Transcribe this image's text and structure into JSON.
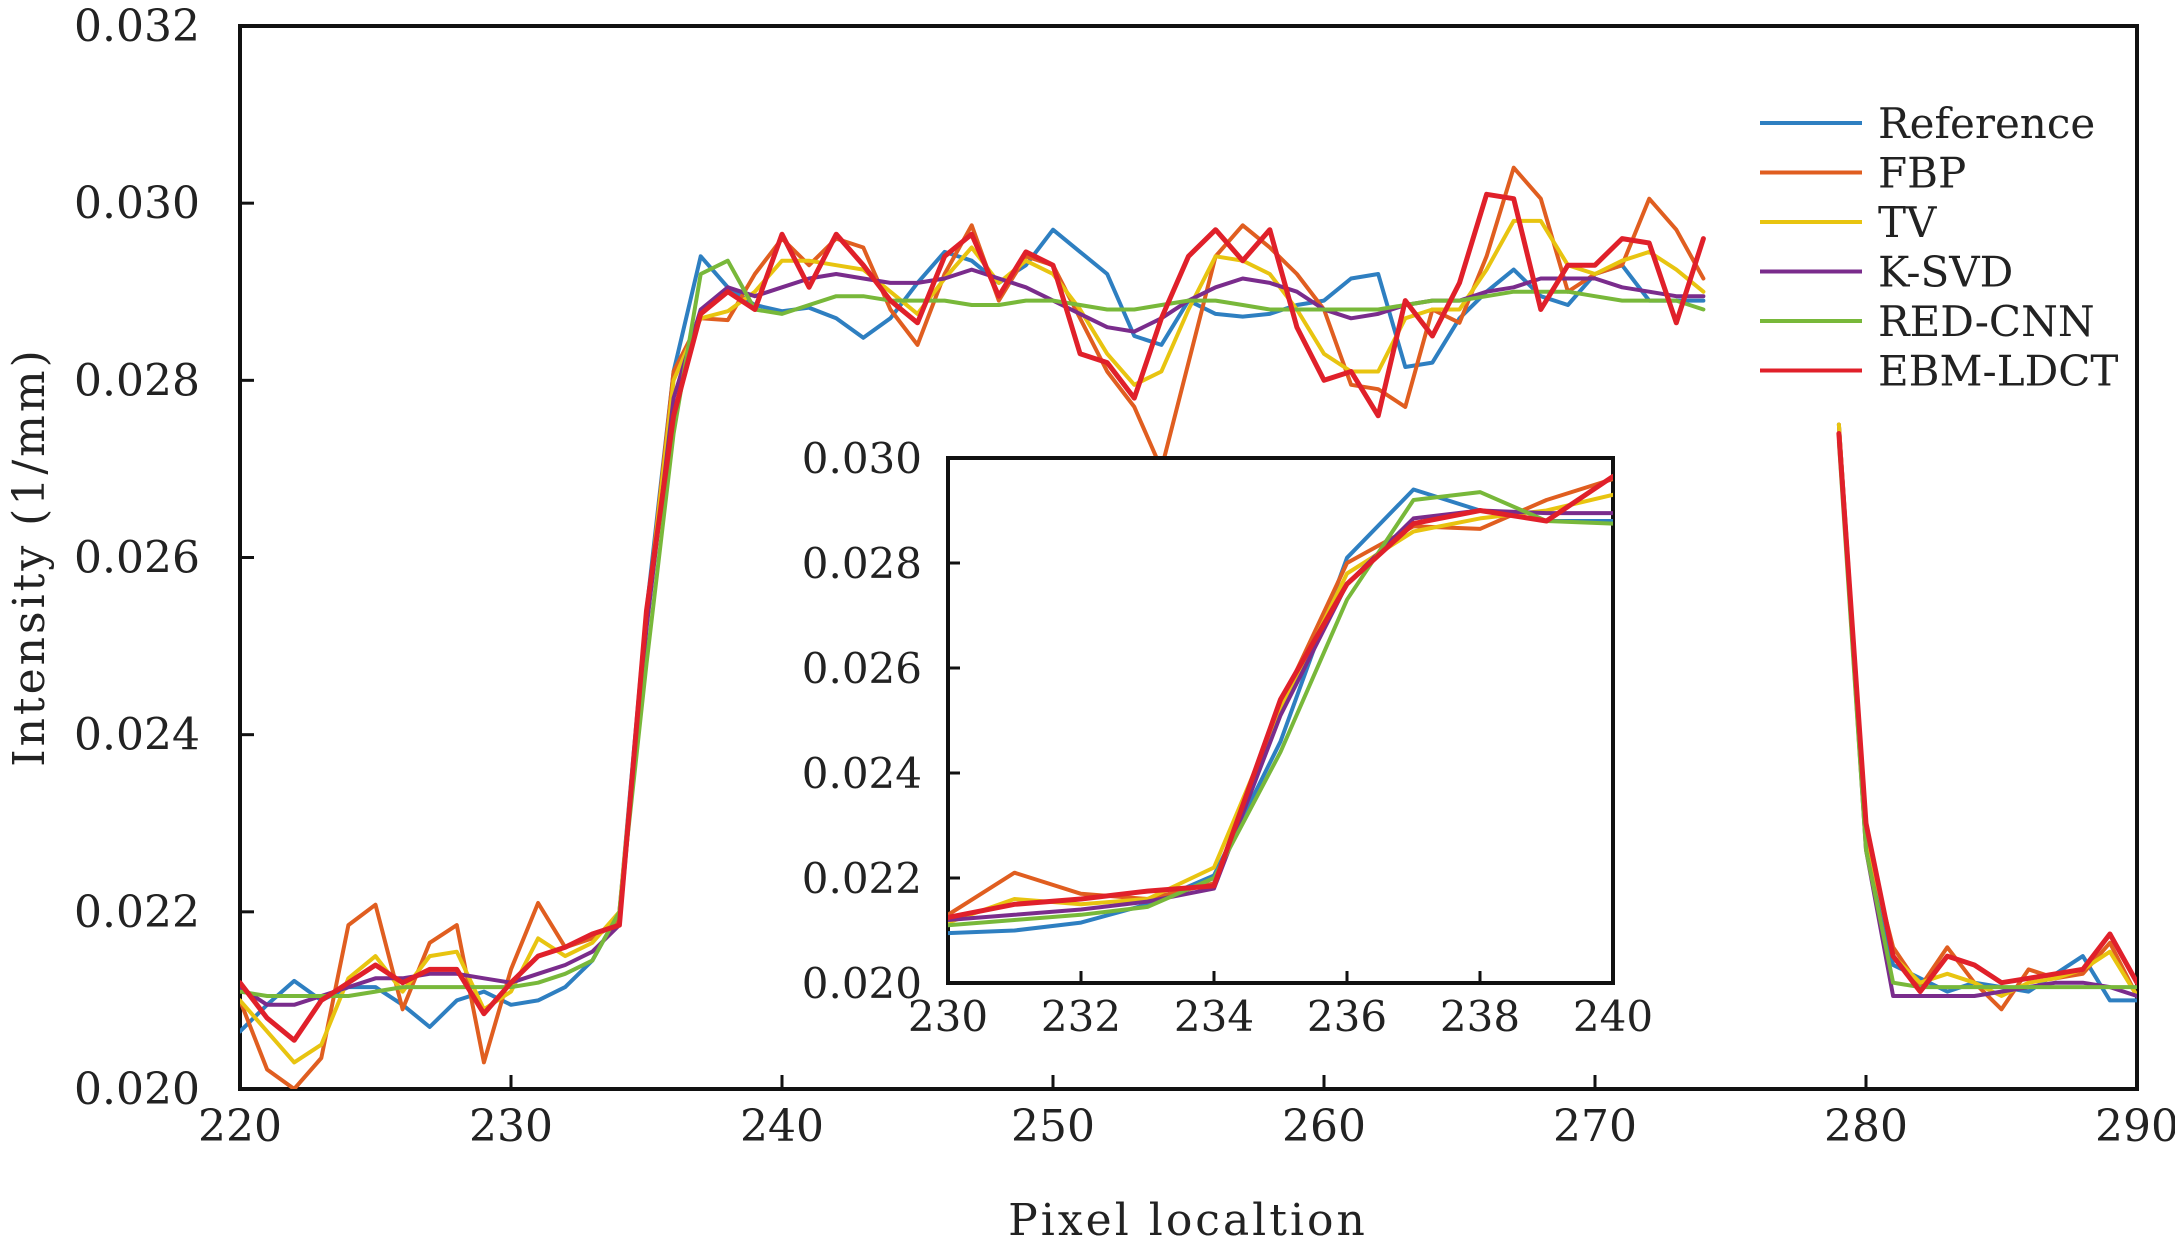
{
  "chart_data": [
    {
      "type": "line",
      "xlabel": "Pixel localtion",
      "ylabel": "Intensity (1/mm)",
      "xlim": [
        220,
        290
      ],
      "ylim": [
        0.02,
        0.032
      ],
      "xticks": [
        "220",
        "230",
        "240",
        "250",
        "260",
        "270",
        "280",
        "290"
      ],
      "yticks": [
        "0.020",
        "0.022",
        "0.024",
        "0.026",
        "0.028",
        "0.030",
        "0.032"
      ],
      "legend": "top-right",
      "x": [
        220,
        221,
        222,
        223,
        224,
        225,
        226,
        227,
        228,
        229,
        230,
        231,
        232,
        233,
        234,
        235,
        236,
        237,
        238,
        239,
        240,
        241,
        242,
        243,
        244,
        245,
        246,
        247,
        248,
        249,
        250,
        251,
        252,
        253,
        254,
        255,
        256,
        257,
        258,
        259,
        260,
        261,
        262,
        263,
        264,
        265,
        266,
        267,
        268,
        269,
        270,
        271,
        272,
        273,
        274,
        275,
        276,
        277,
        278,
        279,
        280,
        281,
        282,
        283,
        284,
        285,
        286,
        287,
        288,
        289,
        290
      ],
      "series": [
        {
          "name": "Reference",
          "color": "#2e7fc1",
          "values": [
            0.02065,
            0.02095,
            0.02122,
            0.021,
            0.02115,
            0.02115,
            0.02095,
            0.0207,
            0.021,
            0.0211,
            0.02095,
            0.021,
            0.02115,
            0.02145,
            0.022,
            0.0254,
            0.0281,
            0.0294,
            0.02905,
            0.02885,
            0.02878,
            0.02882,
            0.0287,
            0.02848,
            0.0287,
            0.0291,
            0.02945,
            0.02935,
            0.0291,
            0.0293,
            0.0297,
            0.02945,
            0.0292,
            0.0285,
            0.0284,
            0.0289,
            0.02875,
            0.02872,
            0.02875,
            0.02885,
            0.0289,
            0.02915,
            0.0292,
            0.02815,
            0.0282,
            0.0287,
            0.029,
            0.02925,
            0.02895,
            0.02885,
            0.0292,
            0.0293,
            0.0289,
            0.0289,
            0.0289,
            null,
            null,
            null,
            null,
            0.0275,
            0.0229,
            0.0214,
            0.02125,
            0.0211,
            0.0212,
            0.02115,
            0.0211,
            0.0213,
            0.0215,
            0.021,
            0.021
          ]
        },
        {
          "name": "FBP",
          "color": "#e05e20",
          "values": [
            0.021,
            0.02022,
            0.02,
            0.02035,
            0.02185,
            0.02208,
            0.0209,
            0.02165,
            0.02185,
            0.0203,
            0.02135,
            0.0221,
            0.0216,
            0.0217,
            0.0219,
            0.0253,
            0.0281,
            0.0287,
            0.02868,
            0.0292,
            0.0296,
            0.0293,
            0.0296,
            0.0295,
            0.0288,
            0.0284,
            0.0292,
            0.02975,
            0.0289,
            0.0294,
            0.0293,
            0.0287,
            0.0281,
            0.0277,
            0.027,
            0.0282,
            0.0294,
            0.02975,
            0.0295,
            0.0292,
            0.0288,
            0.02795,
            0.0279,
            0.0277,
            0.0288,
            0.02865,
            0.0294,
            0.0304,
            0.03005,
            0.029,
            0.0292,
            0.0293,
            0.03005,
            0.0297,
            0.02915,
            null,
            null,
            null,
            null,
            0.0275,
            0.0228,
            0.0216,
            0.02115,
            0.0216,
            0.0212,
            0.0209,
            0.02135,
            0.02125,
            0.0213,
            0.02165,
            0.02105
          ]
        },
        {
          "name": "TV",
          "color": "#e8c410",
          "values": [
            0.021,
            0.02065,
            0.0203,
            0.0205,
            0.02125,
            0.0215,
            0.0211,
            0.0215,
            0.02155,
            0.0209,
            0.0211,
            0.0217,
            0.0215,
            0.02165,
            0.022,
            0.0253,
            0.028,
            0.0287,
            0.02878,
            0.029,
            0.02935,
            0.02935,
            0.0293,
            0.02925,
            0.029,
            0.02875,
            0.02915,
            0.0295,
            0.0291,
            0.02935,
            0.0292,
            0.0288,
            0.0283,
            0.02795,
            0.0281,
            0.0288,
            0.0294,
            0.02935,
            0.0292,
            0.0288,
            0.0283,
            0.0281,
            0.0281,
            0.0287,
            0.0288,
            0.0288,
            0.02925,
            0.0298,
            0.0298,
            0.0293,
            0.0292,
            0.02935,
            0.02945,
            0.02925,
            0.029,
            null,
            null,
            null,
            null,
            0.0275,
            0.0229,
            0.0215,
            0.0212,
            0.0213,
            0.0212,
            0.02105,
            0.0212,
            0.02125,
            0.02135,
            0.02155,
            0.02105
          ]
        },
        {
          "name": "K-SVD",
          "color": "#7a2c8c",
          "values": [
            0.02115,
            0.02095,
            0.02095,
            0.02105,
            0.02115,
            0.02125,
            0.02125,
            0.0213,
            0.0213,
            0.02125,
            0.0212,
            0.0213,
            0.0214,
            0.02155,
            0.02185,
            0.0252,
            0.0278,
            0.0288,
            0.02905,
            0.02895,
            0.02905,
            0.02915,
            0.0292,
            0.02915,
            0.0291,
            0.0291,
            0.02915,
            0.02925,
            0.02915,
            0.02905,
            0.0289,
            0.02875,
            0.0286,
            0.02855,
            0.0287,
            0.0289,
            0.02905,
            0.02915,
            0.0291,
            0.029,
            0.0288,
            0.0287,
            0.02875,
            0.02885,
            0.0289,
            0.0289,
            0.029,
            0.02905,
            0.02915,
            0.02915,
            0.02915,
            0.02905,
            0.029,
            0.02895,
            0.02895,
            null,
            null,
            null,
            null,
            0.0274,
            0.0227,
            0.02105,
            0.02105,
            0.02105,
            0.02105,
            0.0211,
            0.02115,
            0.0212,
            0.0212,
            0.02115,
            0.02105
          ]
        },
        {
          "name": "RED-CNN",
          "color": "#78b83a",
          "values": [
            0.0211,
            0.02105,
            0.02105,
            0.02105,
            0.02105,
            0.0211,
            0.02115,
            0.02115,
            0.02115,
            0.02115,
            0.02115,
            0.0212,
            0.0213,
            0.02145,
            0.022,
            0.0248,
            0.0274,
            0.0292,
            0.02935,
            0.0288,
            0.02875,
            0.02885,
            0.02895,
            0.02895,
            0.0289,
            0.0289,
            0.0289,
            0.02885,
            0.02885,
            0.0289,
            0.0289,
            0.02885,
            0.0288,
            0.0288,
            0.02885,
            0.0289,
            0.0289,
            0.02885,
            0.0288,
            0.0288,
            0.0288,
            0.0288,
            0.0288,
            0.02885,
            0.0289,
            0.0289,
            0.02895,
            0.029,
            0.029,
            0.029,
            0.02895,
            0.0289,
            0.0289,
            0.0289,
            0.0288,
            null,
            null,
            null,
            null,
            0.0273,
            0.0227,
            0.0212,
            0.02115,
            0.02115,
            0.02115,
            0.02115,
            0.02115,
            0.02115,
            0.02115,
            0.02115,
            0.02115
          ]
        },
        {
          "name": "EBM-LDCT",
          "color": "#e0202a",
          "values": [
            0.0212,
            0.0208,
            0.02055,
            0.021,
            0.0212,
            0.0214,
            0.0212,
            0.02135,
            0.02135,
            0.02085,
            0.0212,
            0.0215,
            0.0216,
            0.02175,
            0.02185,
            0.0254,
            0.0276,
            0.02875,
            0.029,
            0.0288,
            0.02965,
            0.02905,
            0.02965,
            0.0293,
            0.0289,
            0.02865,
            0.0294,
            0.02965,
            0.02895,
            0.02945,
            0.0293,
            0.0283,
            0.0282,
            0.0278,
            0.0287,
            0.0294,
            0.0297,
            0.02935,
            0.0297,
            0.0286,
            0.028,
            0.0281,
            0.0276,
            0.0289,
            0.0285,
            0.0291,
            0.0301,
            0.03005,
            0.0288,
            0.0293,
            0.0293,
            0.0296,
            0.02955,
            0.02865,
            0.0296,
            null,
            null,
            null,
            null,
            0.0274,
            0.023,
            0.0215,
            0.0211,
            0.0215,
            0.0214,
            0.0212,
            0.02125,
            0.0213,
            0.02135,
            0.02175,
            0.0212
          ]
        }
      ]
    },
    {
      "type": "line",
      "xlim": [
        230,
        240
      ],
      "ylim": [
        0.02,
        0.03
      ],
      "xticks": [
        "230",
        "232",
        "234",
        "236",
        "238",
        "240"
      ],
      "yticks": [
        "0.020",
        "0.022",
        "0.024",
        "0.026",
        "0.028",
        "0.030"
      ],
      "x": [
        230,
        231,
        232,
        233,
        234,
        235,
        236,
        237,
        238,
        239,
        240
      ],
      "series": [
        {
          "color": "#2e7fc1",
          "values": [
            0.02095,
            0.021,
            0.02115,
            0.0215,
            0.02205,
            0.0246,
            0.0281,
            0.0294,
            0.029,
            0.0288,
            0.0288
          ]
        },
        {
          "color": "#e05e20",
          "values": [
            0.0213,
            0.0221,
            0.0217,
            0.0216,
            0.0219,
            0.0253,
            0.028,
            0.0287,
            0.02865,
            0.0292,
            0.0296
          ]
        },
        {
          "color": "#e8c410",
          "values": [
            0.02115,
            0.0216,
            0.0215,
            0.0216,
            0.0222,
            0.0252,
            0.0278,
            0.0286,
            0.02885,
            0.029,
            0.0293
          ]
        },
        {
          "color": "#7a2c8c",
          "values": [
            0.0212,
            0.0213,
            0.0214,
            0.02155,
            0.0218,
            0.0251,
            0.0276,
            0.02885,
            0.029,
            0.02895,
            0.02895
          ]
        },
        {
          "color": "#78b83a",
          "values": [
            0.0211,
            0.0212,
            0.0213,
            0.02145,
            0.022,
            0.0244,
            0.0273,
            0.0292,
            0.02935,
            0.0288,
            0.02875
          ]
        },
        {
          "color": "#e0202a",
          "values": [
            0.02125,
            0.0215,
            0.0216,
            0.02175,
            0.02185,
            0.0254,
            0.0276,
            0.02875,
            0.029,
            0.0288,
            0.02965
          ]
        }
      ]
    }
  ]
}
